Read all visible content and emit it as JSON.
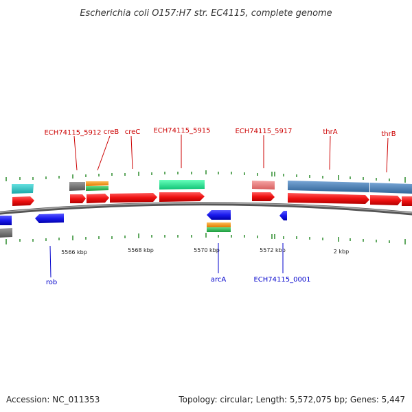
{
  "title": "Escherichia coli O157:H7 str. EC4115, complete genome",
  "footer": {
    "accession": "Accession: NC_011353",
    "topology": "Topology: circular; Length: 5,572,075 bp; Genes: 5,447"
  },
  "colors": {
    "background": "#ffffff",
    "backbone": "#777777",
    "tick": "#2a8a2a",
    "label_top": "#cc0000",
    "label_bottom": "#0000cc",
    "cds_forward": "#ee1111",
    "cds_reverse": "#1a1aee",
    "cog_cyan": "#33cccc",
    "cog_gray": "#777777",
    "cog_orange": "#ff9922",
    "cog_green": "#33bb55",
    "cog_mint": "#22ee99",
    "cog_pink": "#ee8080",
    "cog_steelblue": "#4a7fb8"
  },
  "scale_labels": [
    "5566 kbp",
    "5568 kbp",
    "5570 kbp",
    "5572 kbp",
    "2 kbp"
  ],
  "top_labels": [
    "ECH74115_5912",
    "creB",
    "creC",
    "ECH74115_5915",
    "ECH74115_5917",
    "thrA",
    "thrB"
  ],
  "bottom_labels": [
    "rob",
    "arcA",
    "ECH74115_0001"
  ]
}
